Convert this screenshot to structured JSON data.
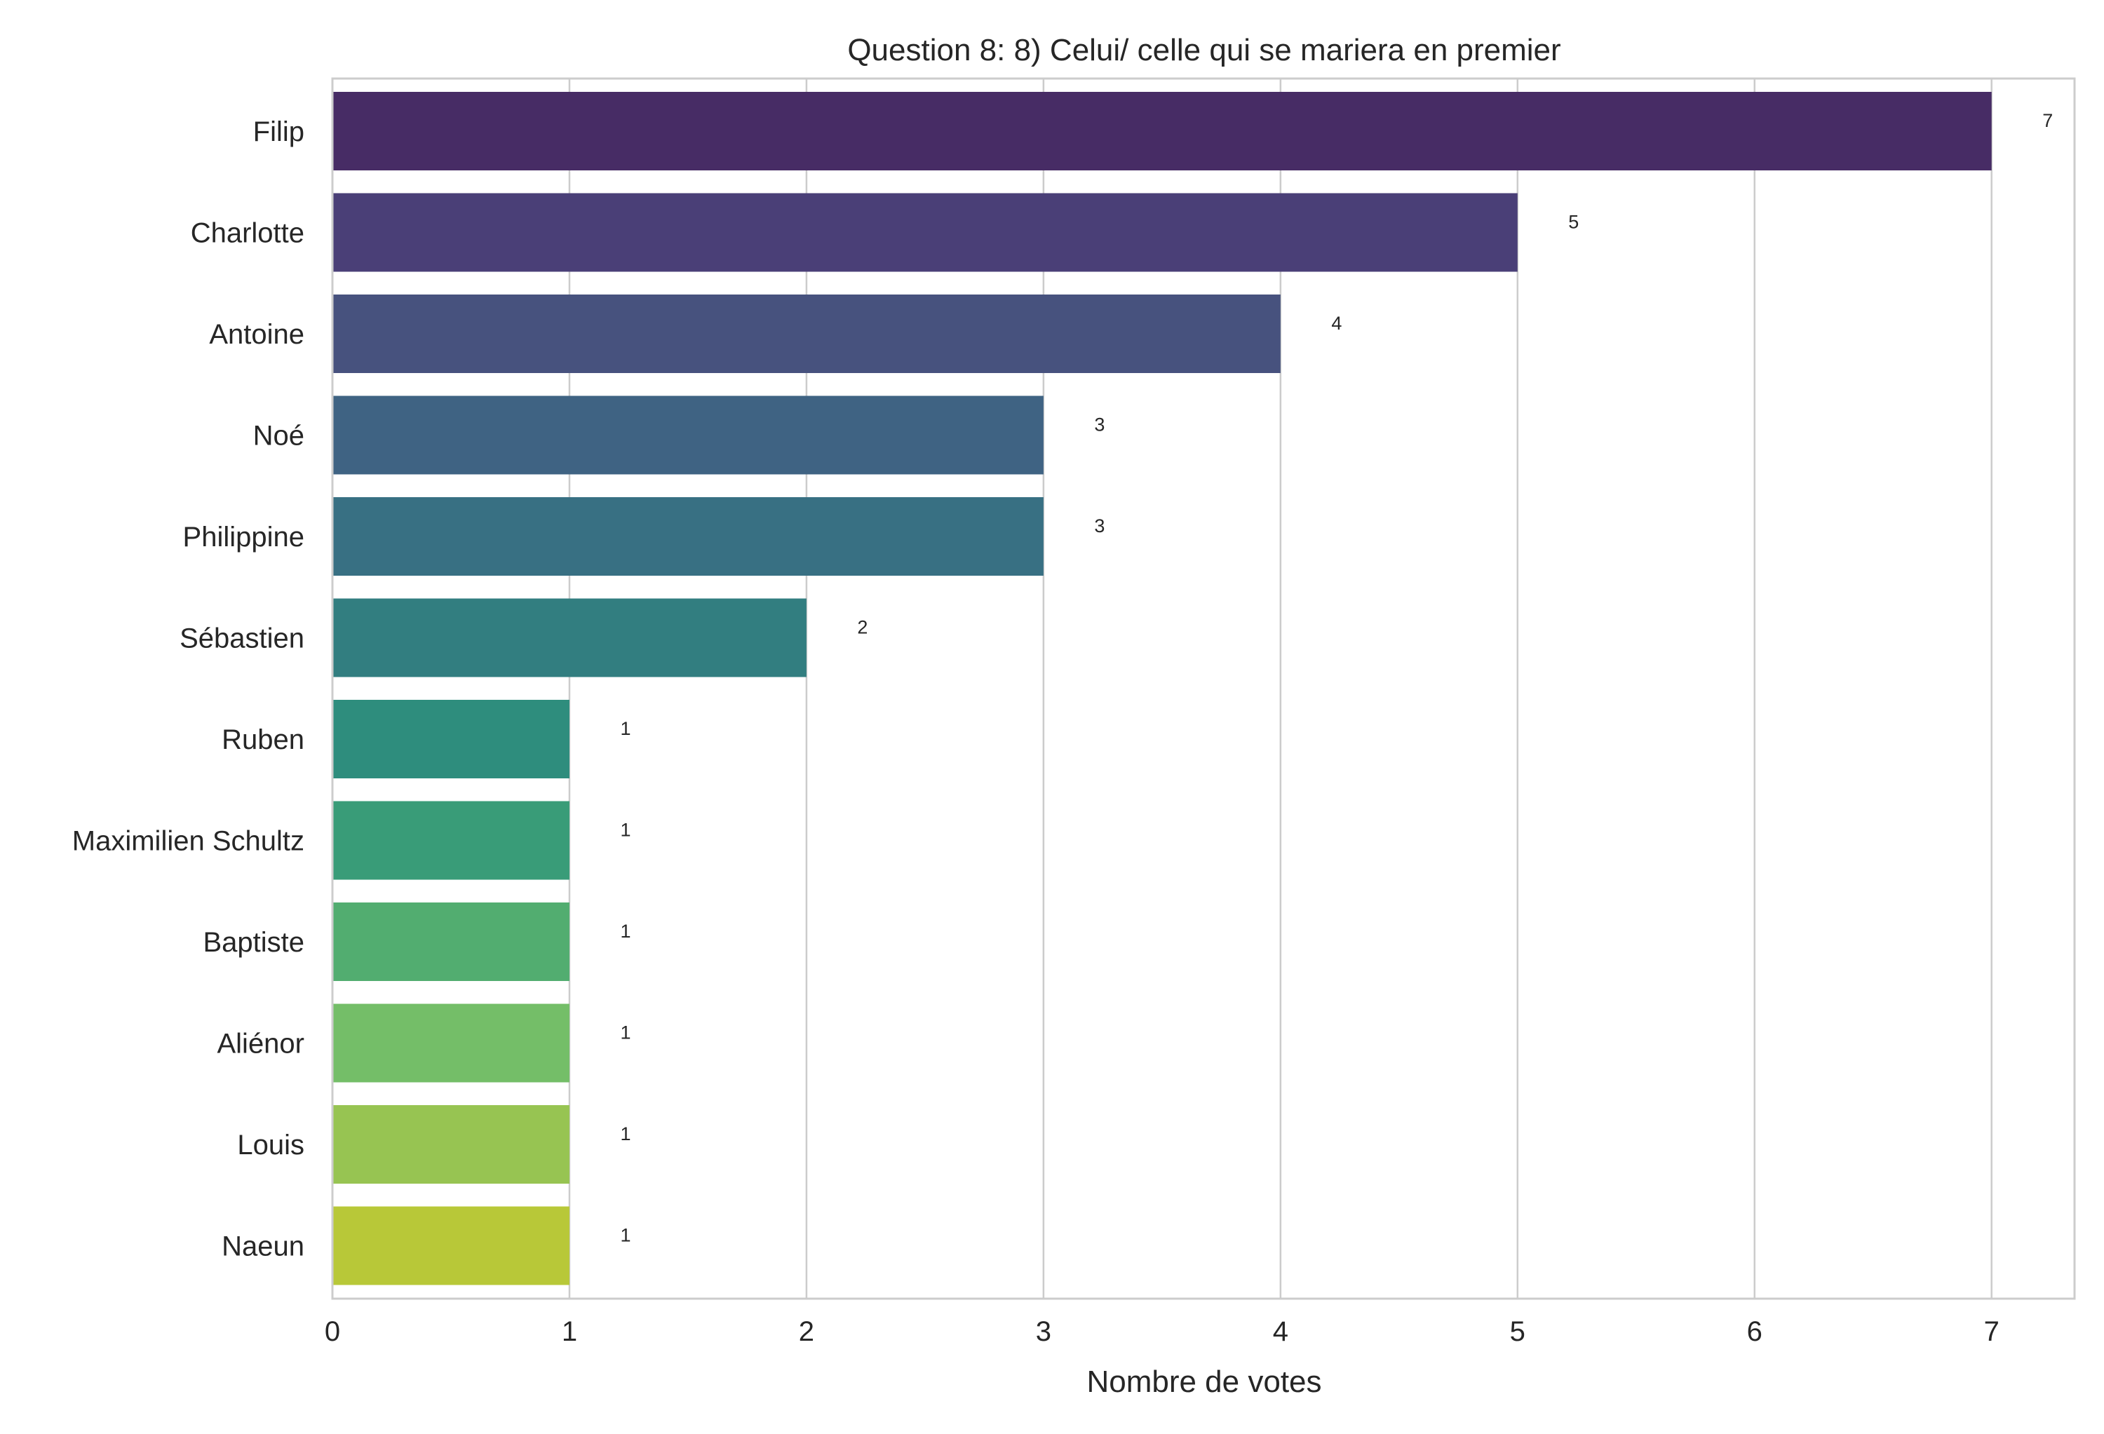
{
  "chart_data": {
    "type": "bar",
    "orientation": "horizontal",
    "title": "Question 8: 8) Celui/ celle qui se mariera en premier",
    "xlabel": "Nombre de votes",
    "ylabel": "",
    "categories": [
      "Filip",
      "Charlotte",
      "Antoine",
      "Noé",
      "Philippine",
      "Sébastien",
      "Ruben",
      "Maximilien Schultz",
      "Baptiste",
      "Aliénor",
      "Louis",
      "Naeun"
    ],
    "values": [
      7,
      5,
      4,
      3,
      3,
      2,
      1,
      1,
      1,
      1,
      1,
      1
    ],
    "data_labels": [
      "7",
      "5",
      "4",
      "3",
      "3",
      "2",
      "1",
      "1",
      "1",
      "1",
      "1",
      "1"
    ],
    "xlim": [
      0,
      7.35
    ],
    "xticks": [
      0,
      1,
      2,
      3,
      4,
      5,
      6,
      7
    ],
    "xtick_labels": [
      "0",
      "1",
      "2",
      "3",
      "4",
      "5",
      "6",
      "7"
    ],
    "grid": "vertical",
    "legend": "none",
    "colors": [
      "#472c65",
      "#4a3f77",
      "#47527e",
      "#3f6383",
      "#387083",
      "#327e80",
      "#2e8d7d",
      "#399c78",
      "#52ad70",
      "#74be68",
      "#97c452",
      "#b8c838"
    ]
  }
}
